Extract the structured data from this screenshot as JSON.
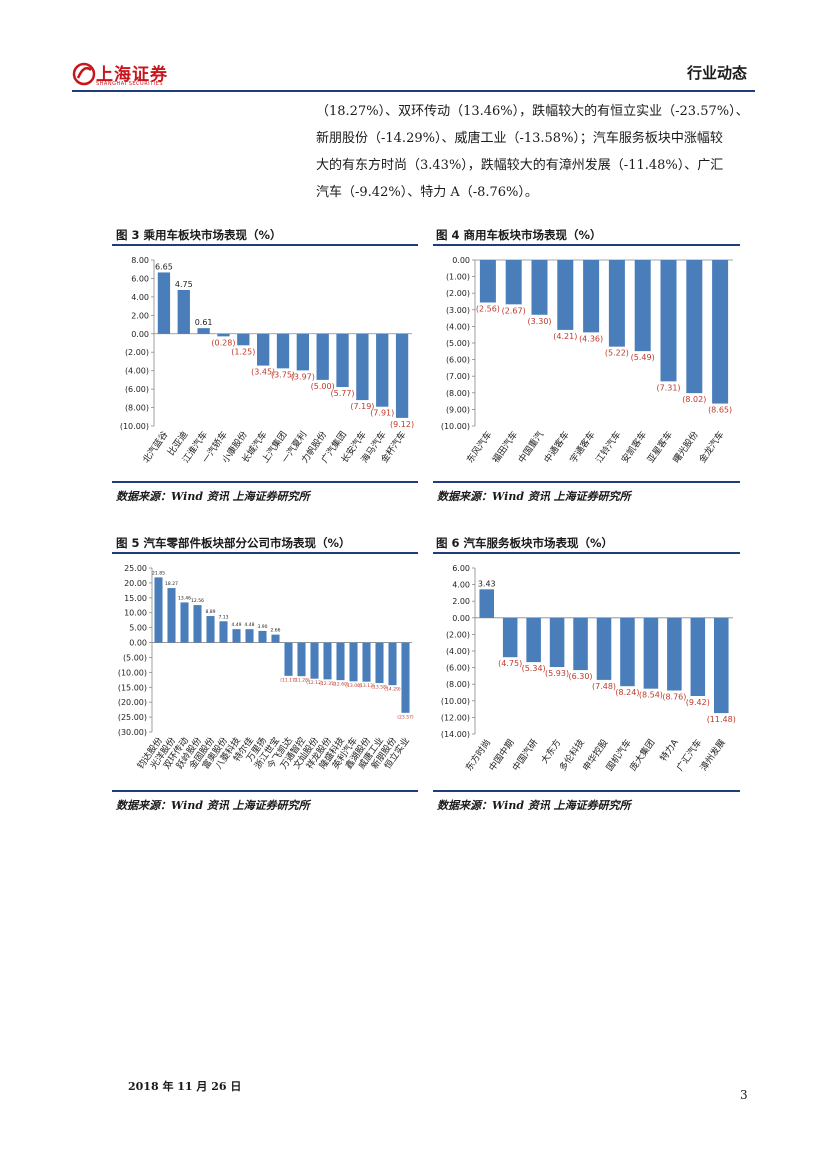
{
  "header": {
    "title": "行业动态",
    "logo_text": "上海证券",
    "logo_sub": "SHANGHAI SECURITIES"
  },
  "paragraph": [
    "（18.27%）、双环传动（13.46%），跌幅较大的有恒立实业（-23.57%）、",
    "新朋股份（-14.29%）、威唐工业（-13.58%）；汽车服务板块中涨幅较",
    "大的有东方时尚（3.43%），跌幅较大的有漳州发展（-11.48%）、广汇",
    "汽车（-9.42%）、特力 A（-8.76%）。"
  ],
  "figures": [
    {
      "title": "图 3 乘用车板块市场表现（%）",
      "source": "数据来源：Wind 资讯 上海证券研究所"
    },
    {
      "title": "图 4 商用车板块市场表现（%）",
      "source": "数据来源：Wind 资讯 上海证券研究所"
    },
    {
      "title": "图 5 汽车零部件板块部分公司市场表现（%）",
      "source": "数据来源：Wind 资讯 上海证券研究所"
    },
    {
      "title": "图 6 汽车服务板块市场表现（%）",
      "source": "数据来源：Wind 资讯 上海证券研究所"
    }
  ],
  "chart_data": [
    {
      "type": "bar",
      "categories": [
        "北汽蓝谷",
        "比亚迪",
        "江淮汽车",
        "一汽轿车",
        "小康股份",
        "长城汽车",
        "上汽集团",
        "一汽夏利",
        "力帆股份",
        "广汽集团",
        "长安汽车",
        "海马汽车",
        "金杯汽车"
      ],
      "values": [
        6.65,
        4.75,
        0.61,
        -0.28,
        -1.25,
        -3.45,
        -3.75,
        -3.97,
        -5.0,
        -5.77,
        -7.19,
        -7.91,
        -9.12
      ],
      "value_labels": [
        "6.65",
        "4.75",
        "0.61",
        "(0.28)",
        "(1.25)",
        "(3.45)",
        "(3.75)",
        "(3.97)",
        "(5.00)",
        "(5.77)",
        "(7.19)",
        "(7.91)",
        "(9.12)"
      ],
      "yticks": [
        "8.00",
        "6.00",
        "4.00",
        "2.00",
        "0.00",
        "(2.00)",
        "(4.00)",
        "(6.00)",
        "(8.00)",
        "(10.00)"
      ],
      "ylim": [
        -10,
        8
      ],
      "bar_color": "#4a7ebb",
      "neg_label_color": "#c0392b"
    },
    {
      "type": "bar",
      "categories": [
        "东风汽车",
        "福田汽车",
        "中国重汽",
        "中通客车",
        "宇通客车",
        "江铃汽车",
        "安凯客车",
        "亚星客车",
        "曙光股份",
        "金龙汽车"
      ],
      "values": [
        -2.56,
        -2.67,
        -3.3,
        -4.21,
        -4.36,
        -5.22,
        -5.49,
        -7.31,
        -8.02,
        -8.65
      ],
      "value_labels": [
        "(2.56)",
        "(2.67)",
        "(3.30)",
        "(4.21)",
        "(4.36)",
        "(5.22)",
        "(5.49)",
        "(7.31)",
        "(8.02)",
        "(8.65)"
      ],
      "yticks": [
        "0.00",
        "(1.00)",
        "(2.00)",
        "(3.00)",
        "(4.00)",
        "(5.00)",
        "(6.00)",
        "(7.00)",
        "(8.00)",
        "(9.00)",
        "(10.00)"
      ],
      "ylim": [
        -10,
        0
      ],
      "bar_color": "#4a7ebb",
      "neg_label_color": "#c0392b"
    },
    {
      "type": "bar",
      "categories": [
        "钧达股份",
        "光洋股份",
        "双环传动",
        "跃岭股份",
        "金固股份",
        "富奥股份",
        "八菱科技",
        "特尔佳",
        "万里扬",
        "浙江世宝",
        "今飞凯达",
        "万通智控",
        "文灿股份",
        "祥龙股份",
        "隆盛科技",
        "英利汽车",
        "鑫湖股份",
        "威唐工业",
        "新朋股份",
        "恒立实业"
      ],
      "values": [
        21.85,
        18.27,
        13.46,
        12.56,
        8.89,
        7.13,
        4.49,
        4.48,
        3.9,
        2.66,
        -11.17,
        -11.28,
        -12.12,
        -12.35,
        -12.6,
        -13.0,
        -13.13,
        -13.58,
        -14.29,
        -23.57
      ],
      "value_labels": [
        "21.85",
        "18.27",
        "13.46",
        "12.56",
        "8.89",
        "7.13",
        "4.49",
        "4.48",
        "3.90",
        "2.66",
        "(11.17)",
        "(11.28)",
        "(12.12)",
        "(12.35)",
        "(12.60)",
        "(13.00)",
        "(13.13)",
        "(13.58)",
        "(14.29)",
        "(23.57)"
      ],
      "yticks": [
        "25.00",
        "20.00",
        "15.00",
        "10.00",
        "5.00",
        "0.00",
        "(5.00)",
        "(10.00)",
        "(15.00)",
        "(20.00)",
        "(25.00)",
        "(30.00)"
      ],
      "ylim": [
        -30,
        25
      ],
      "bar_color": "#4a7ebb",
      "neg_label_color": "#c0392b"
    },
    {
      "type": "bar",
      "categories": [
        "东方时尚",
        "中国中期",
        "中国汽研",
        "大东方",
        "多伦科技",
        "申华控股",
        "国机汽车",
        "庞大集团",
        "特力A",
        "广汇汽车",
        "漳州发展"
      ],
      "values": [
        3.43,
        -4.75,
        -5.34,
        -5.93,
        -6.3,
        -7.48,
        -8.24,
        -8.54,
        -8.76,
        -9.42,
        -11.48
      ],
      "value_labels": [
        "3.43",
        "(4.75)",
        "(5.34)",
        "(5.93)",
        "(6.30)",
        "(7.48)",
        "(8.24)",
        "(8.54)",
        "(8.76)",
        "(9.42)",
        "(11.48)"
      ],
      "yticks": [
        "6.00",
        "4.00",
        "2.00",
        "0.00",
        "(2.00)",
        "(4.00)",
        "(6.00)",
        "(8.00)",
        "(10.00)",
        "(12.00)",
        "(14.00)"
      ],
      "ylim": [
        -14,
        6
      ],
      "bar_color": "#4a7ebb",
      "neg_label_color": "#c0392b"
    }
  ],
  "footer": {
    "date": "2018 年 11 月 26 日",
    "page": "3"
  }
}
